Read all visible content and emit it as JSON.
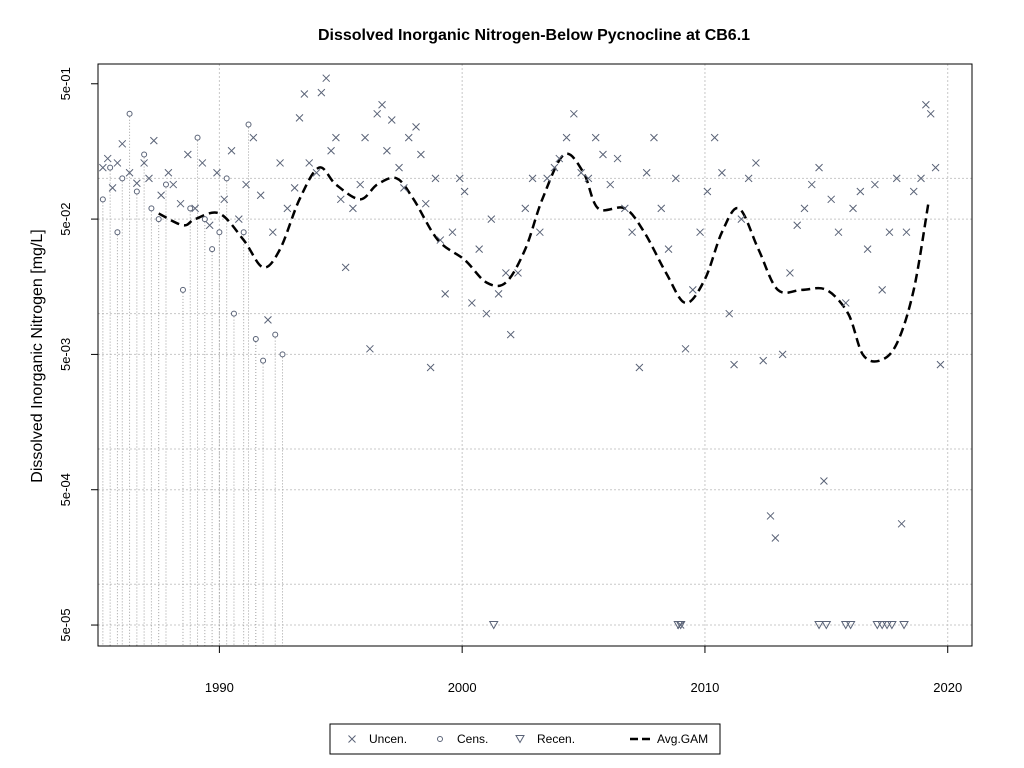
{
  "chart_data": {
    "type": "scatter",
    "title": "Dissolved Inorganic Nitrogen-Below Pycnocline at CB6.1",
    "xlabel": "",
    "ylabel": "Dissolved Inorganic Nitrogen [mg/L]",
    "y_scale": "log10",
    "xlim": [
      1985,
      2021
    ],
    "ylim": [
      3.5e-05,
      0.7
    ],
    "x_ticks": [
      {
        "value": 1990,
        "label": "1990"
      },
      {
        "value": 2000,
        "label": "2000"
      },
      {
        "value": 2010,
        "label": "2010"
      },
      {
        "value": 2020,
        "label": "2020"
      }
    ],
    "y_ticks": [
      {
        "value": 0.5,
        "label": "5e-01"
      },
      {
        "value": 0.05,
        "label": "5e-02"
      },
      {
        "value": 0.005,
        "label": "5e-03"
      },
      {
        "value": 0.0005,
        "label": "5e-04"
      },
      {
        "value": 5e-05,
        "label": "5e-05"
      }
    ],
    "y_grid": [
      0.1,
      0.05,
      0.01,
      0.005,
      0.001,
      0.0005,
      0.0001,
      5e-05
    ],
    "grid": true,
    "legend_position": "bottom",
    "legend": [
      {
        "label": "Uncen.",
        "symbol": "x"
      },
      {
        "label": "Cens.",
        "symbol": "circle"
      },
      {
        "label": "Recen.",
        "symbol": "triangle-down"
      },
      {
        "label": "Avg.GAM",
        "symbol": "dashed-line"
      }
    ],
    "colors": {
      "points": "#5a6377",
      "gam": "#000000",
      "grid": "#c8c8c8",
      "censored_line": "#a0a0a0"
    },
    "series": [
      {
        "name": "Uncen.",
        "points": [
          [
            1985.2,
            0.12
          ],
          [
            1985.4,
            0.14
          ],
          [
            1985.6,
            0.085
          ],
          [
            1985.8,
            0.13
          ],
          [
            1986.0,
            0.18
          ],
          [
            1986.3,
            0.11
          ],
          [
            1986.6,
            0.092
          ],
          [
            1986.9,
            0.13
          ],
          [
            1987.1,
            0.1
          ],
          [
            1987.3,
            0.19
          ],
          [
            1987.6,
            0.075
          ],
          [
            1987.9,
            0.11
          ],
          [
            1988.1,
            0.09
          ],
          [
            1988.4,
            0.065
          ],
          [
            1988.7,
            0.15
          ],
          [
            1989.0,
            0.06
          ],
          [
            1989.3,
            0.13
          ],
          [
            1989.6,
            0.045
          ],
          [
            1989.9,
            0.11
          ],
          [
            1990.2,
            0.07
          ],
          [
            1990.5,
            0.16
          ],
          [
            1990.8,
            0.05
          ],
          [
            1991.1,
            0.09
          ],
          [
            1991.4,
            0.2
          ],
          [
            1991.7,
            0.075
          ],
          [
            1992.0,
            0.009
          ],
          [
            1992.2,
            0.04
          ],
          [
            1992.5,
            0.13
          ],
          [
            1992.8,
            0.06
          ],
          [
            1993.1,
            0.085
          ],
          [
            1993.3,
            0.28
          ],
          [
            1993.5,
            0.42
          ],
          [
            1993.7,
            0.13
          ],
          [
            1994.0,
            0.11
          ],
          [
            1994.2,
            0.43
          ],
          [
            1994.4,
            0.55
          ],
          [
            1994.6,
            0.16
          ],
          [
            1994.8,
            0.2
          ],
          [
            1995.0,
            0.07
          ],
          [
            1995.2,
            0.022
          ],
          [
            1995.5,
            0.06
          ],
          [
            1995.8,
            0.09
          ],
          [
            1996.0,
            0.2
          ],
          [
            1996.2,
            0.0055
          ],
          [
            1996.5,
            0.3
          ],
          [
            1996.7,
            0.35
          ],
          [
            1996.9,
            0.16
          ],
          [
            1997.1,
            0.27
          ],
          [
            1997.4,
            0.12
          ],
          [
            1997.6,
            0.085
          ],
          [
            1997.8,
            0.2
          ],
          [
            1998.1,
            0.24
          ],
          [
            1998.3,
            0.15
          ],
          [
            1998.5,
            0.065
          ],
          [
            1998.7,
            0.004
          ],
          [
            1998.9,
            0.1
          ],
          [
            1999.1,
            0.035
          ],
          [
            1999.3,
            0.014
          ],
          [
            1999.6,
            0.04
          ],
          [
            1999.9,
            0.1
          ],
          [
            2000.1,
            0.08
          ],
          [
            2000.4,
            0.012
          ],
          [
            2000.7,
            0.03
          ],
          [
            2001.0,
            0.01
          ],
          [
            2001.2,
            0.05
          ],
          [
            2001.5,
            0.014
          ],
          [
            2001.8,
            0.02
          ],
          [
            2002.0,
            0.007
          ],
          [
            2002.3,
            0.02
          ],
          [
            2002.6,
            0.06
          ],
          [
            2002.9,
            0.1
          ],
          [
            2003.2,
            0.04
          ],
          [
            2003.5,
            0.1
          ],
          [
            2003.8,
            0.12
          ],
          [
            2004.0,
            0.14
          ],
          [
            2004.3,
            0.2
          ],
          [
            2004.6,
            0.3
          ],
          [
            2004.9,
            0.11
          ],
          [
            2005.2,
            0.1
          ],
          [
            2005.5,
            0.2
          ],
          [
            2005.8,
            0.15
          ],
          [
            2006.1,
            0.09
          ],
          [
            2006.4,
            0.14
          ],
          [
            2006.7,
            0.06
          ],
          [
            2007.0,
            0.04
          ],
          [
            2007.3,
            0.004
          ],
          [
            2007.6,
            0.11
          ],
          [
            2007.9,
            0.2
          ],
          [
            2008.2,
            0.06
          ],
          [
            2008.5,
            0.03
          ],
          [
            2008.8,
            0.1
          ],
          [
            2009.0,
            5e-05
          ],
          [
            2009.2,
            0.0055
          ],
          [
            2009.5,
            0.015
          ],
          [
            2009.8,
            0.04
          ],
          [
            2010.1,
            0.08
          ],
          [
            2010.4,
            0.2
          ],
          [
            2010.7,
            0.11
          ],
          [
            2011.0,
            0.01
          ],
          [
            2011.2,
            0.0042
          ],
          [
            2011.5,
            0.05
          ],
          [
            2011.8,
            0.1
          ],
          [
            2012.1,
            0.13
          ],
          [
            2012.4,
            0.0045
          ],
          [
            2012.7,
            0.00032
          ],
          [
            2012.9,
            0.00022
          ],
          [
            2013.2,
            0.005
          ],
          [
            2013.5,
            0.02
          ],
          [
            2013.8,
            0.045
          ],
          [
            2014.1,
            0.06
          ],
          [
            2014.4,
            0.09
          ],
          [
            2014.7,
            0.12
          ],
          [
            2014.9,
            0.00058
          ],
          [
            2015.2,
            0.07
          ],
          [
            2015.5,
            0.04
          ],
          [
            2015.8,
            0.012
          ],
          [
            2016.1,
            0.06
          ],
          [
            2016.4,
            0.08
          ],
          [
            2016.7,
            0.03
          ],
          [
            2017.0,
            0.09
          ],
          [
            2017.3,
            0.015
          ],
          [
            2017.6,
            0.04
          ],
          [
            2017.9,
            0.1
          ],
          [
            2018.1,
            0.00028
          ],
          [
            2018.3,
            0.04
          ],
          [
            2018.6,
            0.08
          ],
          [
            2018.9,
            0.1
          ],
          [
            2019.1,
            0.35
          ],
          [
            2019.3,
            0.3
          ],
          [
            2019.5,
            0.12
          ],
          [
            2019.7,
            0.0042
          ]
        ]
      },
      {
        "name": "Cens.",
        "points": [
          [
            1985.2,
            0.07
          ],
          [
            1985.5,
            0.12
          ],
          [
            1985.8,
            0.04
          ],
          [
            1986.0,
            0.1
          ],
          [
            1986.3,
            0.3
          ],
          [
            1986.6,
            0.08
          ],
          [
            1986.9,
            0.15
          ],
          [
            1987.2,
            0.06
          ],
          [
            1987.5,
            0.05
          ],
          [
            1987.8,
            0.09
          ],
          [
            1988.5,
            0.015
          ],
          [
            1988.8,
            0.06
          ],
          [
            1989.1,
            0.2
          ],
          [
            1989.4,
            0.05
          ],
          [
            1989.7,
            0.03
          ],
          [
            1990.0,
            0.04
          ],
          [
            1990.3,
            0.1
          ],
          [
            1990.6,
            0.01
          ],
          [
            1991.0,
            0.04
          ],
          [
            1991.2,
            0.25
          ],
          [
            1991.5,
            0.0065
          ],
          [
            1991.8,
            0.0045
          ],
          [
            1992.3,
            0.007
          ],
          [
            1992.6,
            0.005
          ]
        ]
      },
      {
        "name": "Recen.",
        "points": [
          [
            2001.3,
            5e-05
          ],
          [
            2008.9,
            5e-05
          ],
          [
            2009.0,
            5e-05
          ],
          [
            2014.7,
            5e-05
          ],
          [
            2015.0,
            5e-05
          ],
          [
            2015.8,
            5e-05
          ],
          [
            2016.0,
            5e-05
          ],
          [
            2017.1,
            5e-05
          ],
          [
            2017.3,
            5e-05
          ],
          [
            2017.5,
            5e-05
          ],
          [
            2017.7,
            5e-05
          ],
          [
            2018.2,
            5e-05
          ]
        ]
      },
      {
        "name": "Avg.GAM",
        "points": [
          [
            1987.5,
            0.055
          ],
          [
            1988.5,
            0.045
          ],
          [
            1989.0,
            0.05
          ],
          [
            1990.0,
            0.055
          ],
          [
            1991.0,
            0.035
          ],
          [
            1991.8,
            0.022
          ],
          [
            1992.5,
            0.03
          ],
          [
            1993.3,
            0.07
          ],
          [
            1994.1,
            0.12
          ],
          [
            1994.8,
            0.09
          ],
          [
            1995.8,
            0.07
          ],
          [
            1996.5,
            0.09
          ],
          [
            1997.3,
            0.1
          ],
          [
            1998.0,
            0.07
          ],
          [
            1999.0,
            0.035
          ],
          [
            2000.1,
            0.025
          ],
          [
            2001.0,
            0.017
          ],
          [
            2001.8,
            0.017
          ],
          [
            2002.6,
            0.03
          ],
          [
            2003.3,
            0.07
          ],
          [
            2004.2,
            0.15
          ],
          [
            2005.0,
            0.11
          ],
          [
            2005.6,
            0.06
          ],
          [
            2006.7,
            0.06
          ],
          [
            2007.5,
            0.04
          ],
          [
            2008.4,
            0.02
          ],
          [
            2009.2,
            0.012
          ],
          [
            2010.0,
            0.018
          ],
          [
            2010.7,
            0.04
          ],
          [
            2011.4,
            0.06
          ],
          [
            2012.2,
            0.03
          ],
          [
            2013.0,
            0.015
          ],
          [
            2014.0,
            0.015
          ],
          [
            2015.0,
            0.015
          ],
          [
            2015.9,
            0.01
          ],
          [
            2016.5,
            0.005
          ],
          [
            2017.2,
            0.0045
          ],
          [
            2017.9,
            0.006
          ],
          [
            2018.6,
            0.015
          ],
          [
            2019.2,
            0.065
          ]
        ]
      }
    ]
  }
}
